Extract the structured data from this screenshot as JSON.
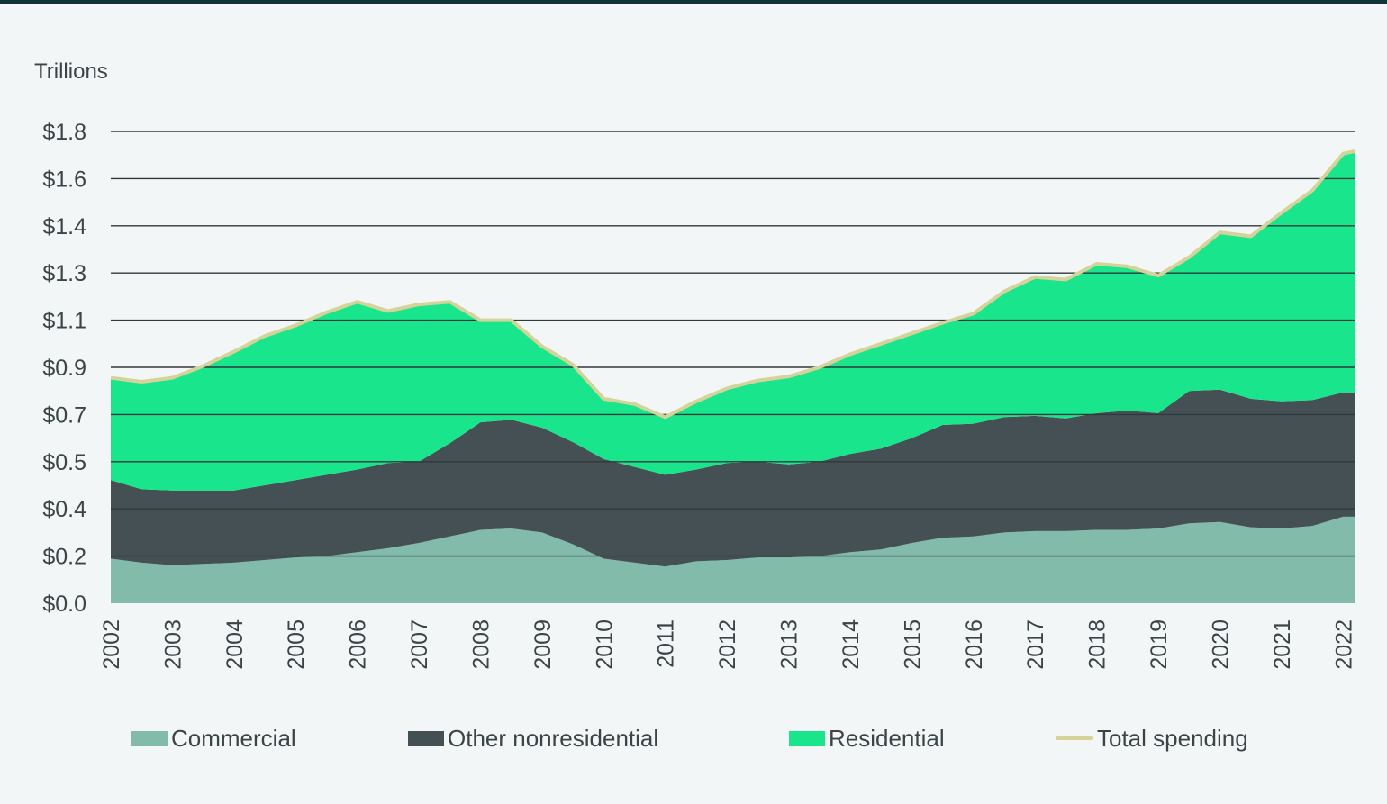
{
  "chart_data": {
    "type": "area",
    "stacked": true,
    "ylabel": "Trillions",
    "ylim": [
      0,
      1.8
    ],
    "y_ticks": [
      "$0.0",
      "$0.2",
      "$0.4",
      "$0.5",
      "$0.7",
      "$0.9",
      "$1.1",
      "$1.3",
      "$1.4",
      "$1.6",
      "$1.8"
    ],
    "x_ticks": [
      "2002",
      "2003",
      "2004",
      "2005",
      "2006",
      "2007",
      "2008",
      "2009",
      "2010",
      "2011",
      "2012",
      "2013",
      "2014",
      "2015",
      "2016",
      "2017",
      "2018",
      "2019",
      "2020",
      "2021",
      "2022"
    ],
    "x": [
      2002,
      2002.5,
      2003,
      2003.5,
      2004,
      2004.5,
      2005,
      2005.5,
      2006,
      2006.5,
      2007,
      2007.5,
      2008,
      2008.5,
      2009,
      2009.5,
      2010,
      2010.5,
      2011,
      2011.5,
      2012,
      2012.5,
      2013,
      2013.5,
      2014,
      2014.5,
      2015,
      2015.5,
      2016,
      2016.5,
      2017,
      2017.5,
      2018,
      2018.5,
      2019,
      2019.5,
      2020,
      2020.5,
      2021,
      2021.5,
      2022,
      2022.2
    ],
    "series": [
      {
        "name": "Commercial",
        "color": "#83bbaa",
        "values": [
          0.17,
          0.155,
          0.145,
          0.15,
          0.155,
          0.165,
          0.175,
          0.18,
          0.195,
          0.21,
          0.23,
          0.255,
          0.28,
          0.285,
          0.27,
          0.225,
          0.17,
          0.155,
          0.14,
          0.16,
          0.165,
          0.175,
          0.175,
          0.18,
          0.195,
          0.205,
          0.23,
          0.25,
          0.255,
          0.27,
          0.275,
          0.275,
          0.28,
          0.28,
          0.285,
          0.305,
          0.31,
          0.29,
          0.285,
          0.295,
          0.33,
          0.33
        ]
      },
      {
        "name": "Other nonresidential",
        "color": "#455054",
        "values": [
          0.3,
          0.28,
          0.285,
          0.28,
          0.275,
          0.285,
          0.295,
          0.31,
          0.315,
          0.325,
          0.31,
          0.355,
          0.41,
          0.415,
          0.4,
          0.39,
          0.38,
          0.365,
          0.35,
          0.35,
          0.37,
          0.365,
          0.355,
          0.36,
          0.375,
          0.385,
          0.4,
          0.43,
          0.43,
          0.44,
          0.44,
          0.43,
          0.445,
          0.455,
          0.44,
          0.505,
          0.505,
          0.49,
          0.485,
          0.48,
          0.475,
          0.475
        ]
      },
      {
        "name": "Residential",
        "color": "#19e68c",
        "values": [
          0.39,
          0.41,
          0.43,
          0.475,
          0.53,
          0.57,
          0.59,
          0.62,
          0.64,
          0.58,
          0.6,
          0.54,
          0.39,
          0.38,
          0.31,
          0.295,
          0.23,
          0.24,
          0.22,
          0.26,
          0.285,
          0.31,
          0.335,
          0.36,
          0.38,
          0.4,
          0.4,
          0.39,
          0.42,
          0.48,
          0.53,
          0.53,
          0.57,
          0.55,
          0.525,
          0.51,
          0.6,
          0.62,
          0.72,
          0.8,
          0.91,
          0.92
        ]
      },
      {
        "name": "Total spending",
        "color": "#d6d39a",
        "type": "line",
        "values": [
          0.86,
          0.845,
          0.86,
          0.905,
          0.96,
          1.02,
          1.06,
          1.11,
          1.15,
          1.115,
          1.14,
          1.15,
          1.08,
          1.08,
          0.98,
          0.91,
          0.78,
          0.76,
          0.71,
          0.77,
          0.82,
          0.85,
          0.865,
          0.9,
          0.95,
          0.99,
          1.03,
          1.07,
          1.105,
          1.19,
          1.245,
          1.235,
          1.295,
          1.285,
          1.25,
          1.32,
          1.415,
          1.4,
          1.49,
          1.575,
          1.715,
          1.725
        ]
      }
    ],
    "grid": true,
    "legend": "bottom"
  }
}
